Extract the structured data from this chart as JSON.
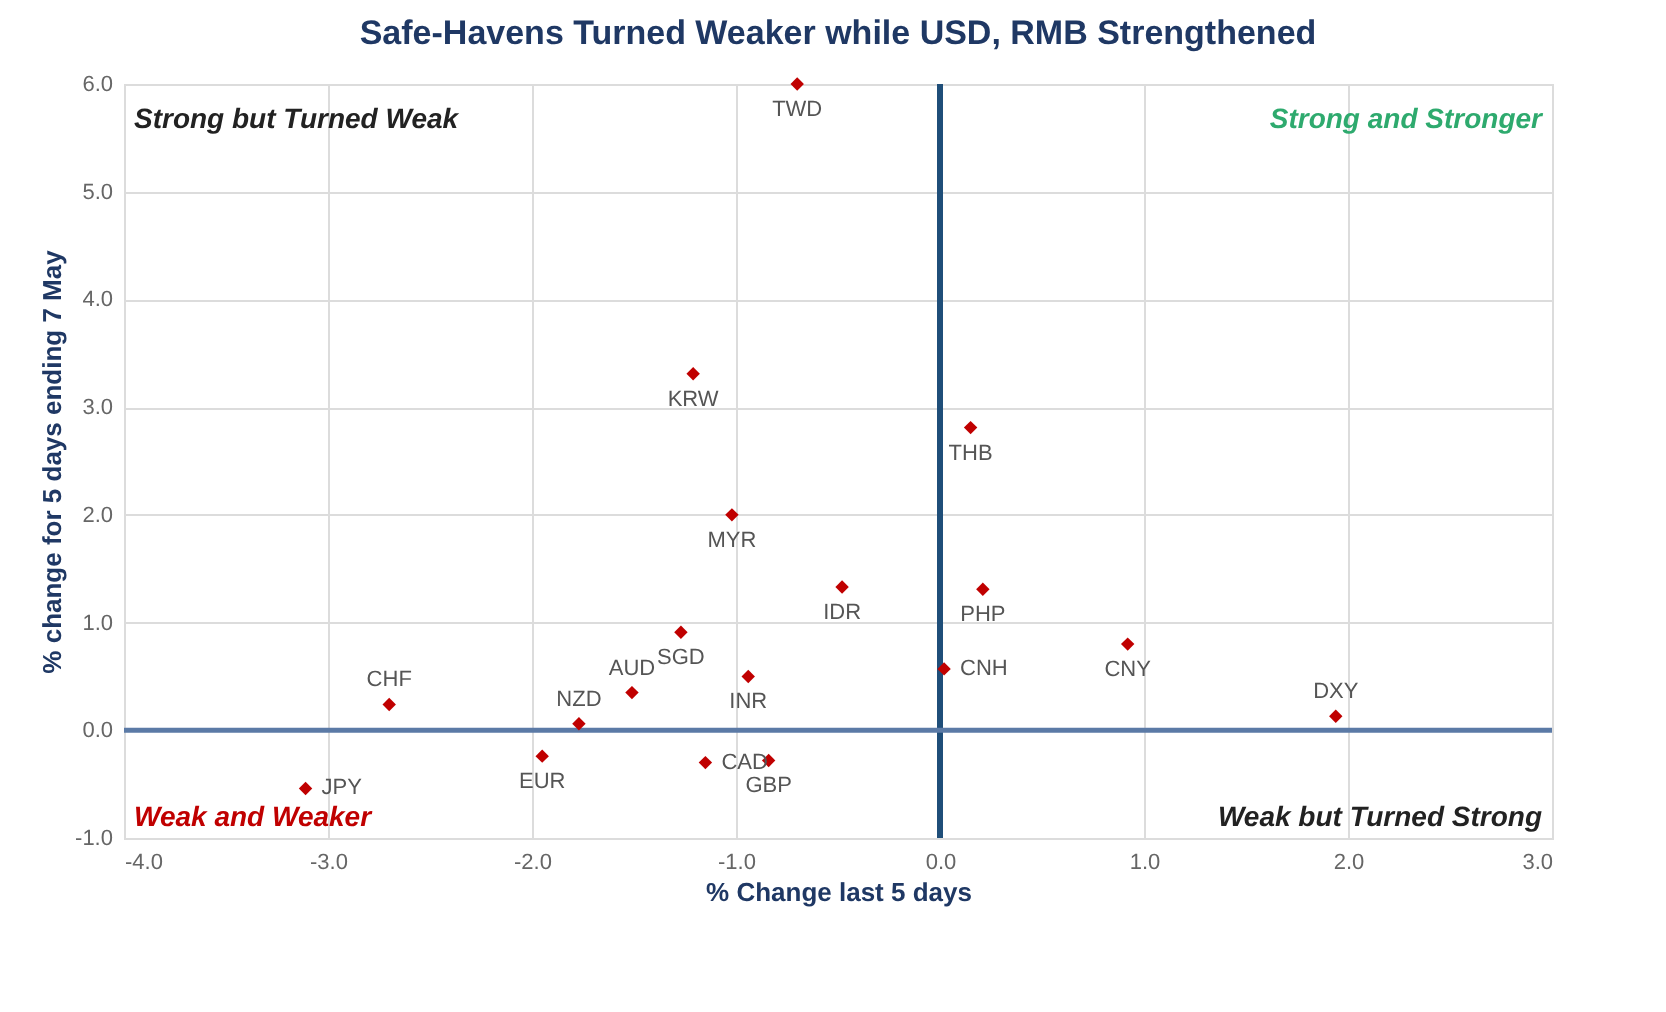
{
  "chart_data": {
    "type": "scatter",
    "title": "Safe-Havens Turned Weaker while USD, RMB Strengthened",
    "xlabel": "% Change last 5 days",
    "ylabel": "% change for 5 days ending 7 May",
    "xlim": [
      -4,
      3
    ],
    "xticks": [
      {
        "value": -4,
        "label": "-4.0"
      },
      {
        "value": -3,
        "label": "-3.0"
      },
      {
        "value": -2,
        "label": "-2.0"
      },
      {
        "value": -1,
        "label": "-1.0"
      },
      {
        "value": 0,
        "label": "0.0"
      },
      {
        "value": 1,
        "label": "1.0"
      },
      {
        "value": 2,
        "label": "2.0"
      },
      {
        "value": 3,
        "label": "3.0"
      }
    ],
    "ylim": [
      -1,
      6
    ],
    "yticks": [
      {
        "value": -1,
        "label": "-1.0"
      },
      {
        "value": 0,
        "label": "0.0"
      },
      {
        "value": 1,
        "label": "1.0"
      },
      {
        "value": 2,
        "label": "2.0"
      },
      {
        "value": 3,
        "label": "3.0"
      },
      {
        "value": 4,
        "label": "4.0"
      },
      {
        "value": 5,
        "label": "5.0"
      },
      {
        "value": 6,
        "label": "6.0"
      }
    ],
    "grid": true,
    "marker": "diamond",
    "series": [
      {
        "color": "#c00000",
        "x": [
          -0.7,
          -1.21,
          0.15,
          -1.02,
          -1.27,
          -0.48,
          0.21,
          0.92,
          1.94,
          0.02,
          -0.94,
          -1.51,
          -1.77,
          -2.7,
          -3.11,
          -1.95,
          -1.15,
          -0.84
        ],
        "values": [
          6.0,
          3.31,
          2.81,
          2.0,
          0.91,
          1.33,
          1.31,
          0.8,
          0.13,
          0.57,
          0.5,
          0.35,
          0.06,
          0.24,
          -0.54,
          -0.24,
          -0.3,
          -0.28
        ]
      }
    ],
    "ref_lines": [
      {
        "axis": "x",
        "value": 0,
        "color": "#1f4e79"
      },
      {
        "axis": "y",
        "value": 0,
        "color": "#5b7aa6"
      }
    ],
    "annotations": [
      "Strong but Turned Weak",
      "Strong and Stronger",
      "Weak and Weaker",
      "Weak but Turned Strong",
      {
        "text": "TWD",
        "x": -0.7,
        "y": 6.0
      },
      {
        "text": "KRW",
        "x": -1.21,
        "y": 3.31
      },
      {
        "text": "THB",
        "x": 0.15,
        "y": 2.81
      },
      {
        "text": "MYR",
        "x": -1.02,
        "y": 2.0
      },
      {
        "text": "SGD",
        "x": -1.27,
        "y": 0.91
      },
      {
        "text": "IDR",
        "x": -0.48,
        "y": 1.33
      },
      {
        "text": "PHP",
        "x": 0.21,
        "y": 1.31
      },
      {
        "text": "CNY",
        "x": 0.92,
        "y": 0.8
      },
      {
        "text": "DXY",
        "x": 1.94,
        "y": 0.13
      },
      {
        "text": "CNH",
        "x": 0.02,
        "y": 0.57
      },
      {
        "text": "INR",
        "x": -0.94,
        "y": 0.5
      },
      {
        "text": "AUD",
        "x": -1.51,
        "y": 0.35
      },
      {
        "text": "NZD",
        "x": -1.77,
        "y": 0.06
      },
      {
        "text": "CHF",
        "x": -2.7,
        "y": 0.24
      },
      {
        "text": "JPY",
        "x": -3.11,
        "y": -0.54
      },
      {
        "text": "EUR",
        "x": -1.95,
        "y": -0.24
      },
      {
        "text": "CAD",
        "x": -1.15,
        "y": -0.3
      },
      {
        "text": "GBP",
        "x": -0.84,
        "y": -0.28
      }
    ]
  }
}
